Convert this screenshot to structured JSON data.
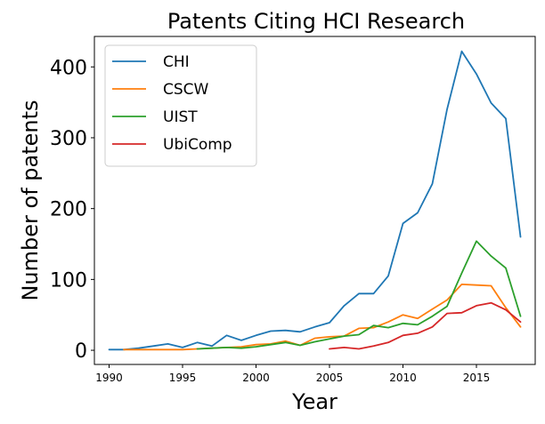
{
  "chart_data": {
    "type": "line",
    "title": "Patents Citing HCI Research",
    "xlabel": "Year",
    "ylabel": "Number of patents",
    "xlim": [
      1989,
      2019
    ],
    "ylim": [
      -20,
      443
    ],
    "xticks": [
      1990,
      1995,
      2000,
      2005,
      2010,
      2015
    ],
    "yticks": [
      0,
      100,
      200,
      300,
      400
    ],
    "grid": false,
    "legend_position": "top-left",
    "series": [
      {
        "name": "CHI",
        "color": "#1f77b4",
        "x": [
          1990,
          1991,
          1992,
          1993,
          1994,
          1995,
          1996,
          1997,
          1998,
          1999,
          2000,
          2001,
          2002,
          2003,
          2004,
          2005,
          2006,
          2007,
          2008,
          2009,
          2010,
          2011,
          2012,
          2013,
          2014,
          2015,
          2016,
          2017,
          2018
        ],
        "y": [
          1,
          1,
          3,
          6,
          9,
          4,
          11,
          6,
          21,
          14,
          21,
          27,
          28,
          26,
          33,
          39,
          63,
          80,
          80,
          105,
          179,
          194,
          235,
          340,
          422,
          390,
          349,
          327,
          160
        ]
      },
      {
        "name": "CSCW",
        "color": "#ff7f0e",
        "x": [
          1991,
          1992,
          1993,
          1994,
          1995,
          1996,
          1997,
          1998,
          1999,
          2000,
          2001,
          2002,
          2003,
          2004,
          2005,
          2006,
          2007,
          2008,
          2009,
          2010,
          2011,
          2012,
          2013,
          2014,
          2015,
          2016,
          2017,
          2018
        ],
        "y": [
          1,
          1,
          1,
          1,
          1,
          2,
          3,
          4,
          5,
          8,
          9,
          13,
          7,
          17,
          19,
          20,
          31,
          32,
          40,
          50,
          45,
          58,
          71,
          93,
          92,
          91,
          60,
          33
        ]
      },
      {
        "name": "UIST",
        "color": "#2ca02c",
        "x": [
          1996,
          1997,
          1998,
          1999,
          2000,
          2001,
          2002,
          2003,
          2004,
          2005,
          2006,
          2007,
          2008,
          2009,
          2010,
          2011,
          2012,
          2013,
          2014,
          2015,
          2016,
          2017,
          2018
        ],
        "y": [
          2,
          3,
          4,
          3,
          5,
          8,
          11,
          7,
          12,
          16,
          20,
          22,
          35,
          32,
          38,
          36,
          48,
          62,
          109,
          154,
          133,
          116,
          48
        ]
      },
      {
        "name": "UbiComp",
        "color": "#d62728",
        "x": [
          2005,
          2006,
          2007,
          2008,
          2009,
          2010,
          2011,
          2012,
          2013,
          2014,
          2015,
          2016,
          2017,
          2018
        ],
        "y": [
          2,
          4,
          2,
          6,
          11,
          21,
          24,
          33,
          52,
          53,
          63,
          67,
          57,
          40
        ]
      }
    ]
  }
}
